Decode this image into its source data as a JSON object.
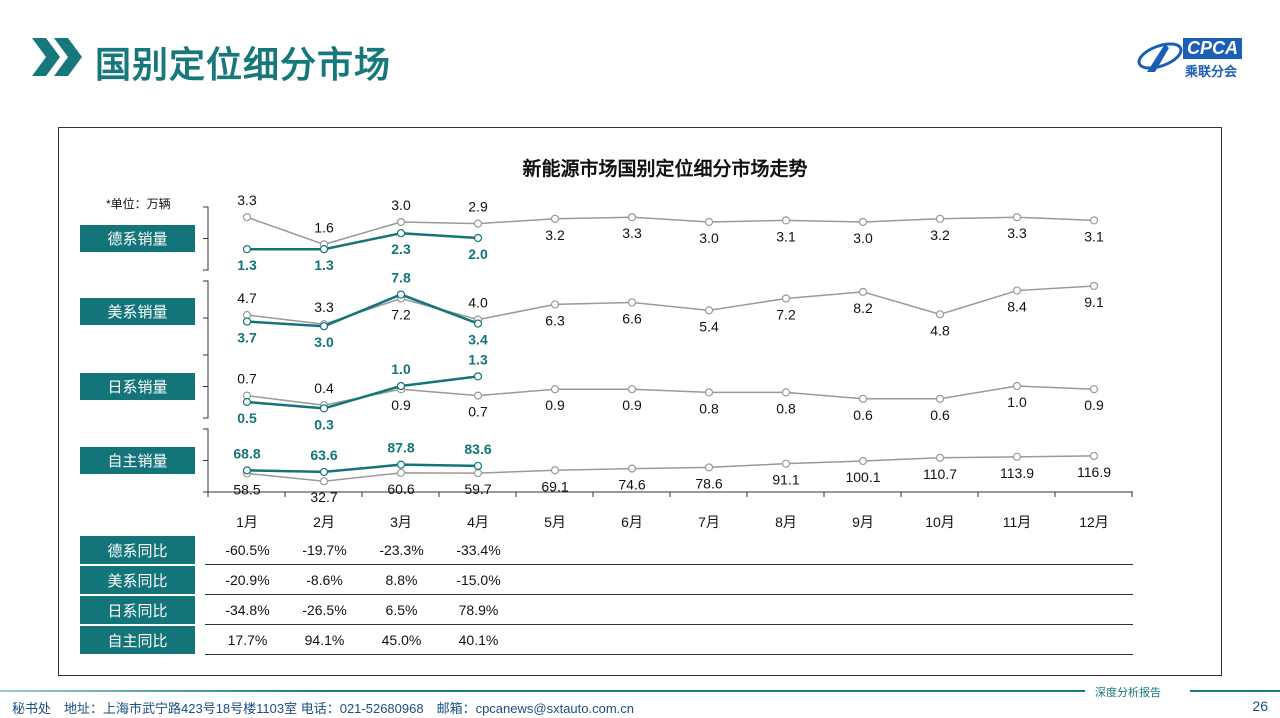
{
  "header": {
    "title": "国别定位细分市场",
    "logo_text": "CPCA",
    "logo_sub": "乘联分会"
  },
  "chart_data": {
    "type": "line",
    "title": "新能源市场国别定位细分市场走势",
    "unit_note": "*单位：万辆",
    "categories": [
      "1月",
      "2月",
      "3月",
      "4月",
      "5月",
      "6月",
      "7月",
      "8月",
      "9月",
      "10月",
      "11月",
      "12月"
    ],
    "colors": {
      "grey": "#999999",
      "teal": "#13747a"
    },
    "panels": [
      {
        "label": "德系销量",
        "series": [
          {
            "color": "grey",
            "values": [
              3.3,
              1.6,
              3.0,
              2.9,
              3.2,
              3.3,
              3.0,
              3.1,
              3.0,
              3.2,
              3.3,
              3.1
            ]
          },
          {
            "color": "teal",
            "values": [
              1.3,
              1.3,
              2.3,
              2.0
            ]
          }
        ]
      },
      {
        "label": "美系销量",
        "series": [
          {
            "color": "grey",
            "values": [
              4.7,
              3.3,
              7.2,
              4.0,
              6.3,
              6.6,
              5.4,
              7.2,
              8.2,
              4.8,
              8.4,
              9.1
            ]
          },
          {
            "color": "teal",
            "values": [
              3.7,
              3.0,
              7.8,
              3.4
            ]
          }
        ]
      },
      {
        "label": "日系销量",
        "series": [
          {
            "color": "grey",
            "values": [
              0.7,
              0.4,
              0.9,
              0.7,
              0.9,
              0.9,
              0.8,
              0.8,
              0.6,
              0.6,
              1.0,
              0.9
            ]
          },
          {
            "color": "teal",
            "values": [
              0.5,
              0.3,
              1.0,
              1.3
            ]
          }
        ]
      },
      {
        "label": "自主销量",
        "series": [
          {
            "color": "grey",
            "values": [
              58.5,
              32.7,
              60.6,
              59.7,
              69.1,
              74.6,
              78.6,
              91.1,
              100.1,
              110.7,
              113.9,
              116.9
            ]
          },
          {
            "color": "teal",
            "values": [
              68.8,
              63.6,
              87.8,
              83.6
            ]
          }
        ]
      }
    ]
  },
  "yoy_table": {
    "rows": [
      {
        "label": "德系同比",
        "values": [
          "-60.5%",
          "-19.7%",
          "-23.3%",
          "-33.4%"
        ]
      },
      {
        "label": "美系同比",
        "values": [
          "-20.9%",
          "-8.6%",
          "8.8%",
          "-15.0%"
        ]
      },
      {
        "label": "日系同比",
        "values": [
          "-34.8%",
          "-26.5%",
          "6.5%",
          "78.9%"
        ]
      },
      {
        "label": "自主同比",
        "values": [
          "17.7%",
          "94.1%",
          "45.0%",
          "40.1%"
        ]
      }
    ]
  },
  "footer": {
    "text": "秘书处　地址：上海市武宁路423号18号楼1103室 电话：021-52680968　邮箱：cpcanews@sxtauto.com.cn",
    "tag": "深度分析报告",
    "page": "26"
  }
}
